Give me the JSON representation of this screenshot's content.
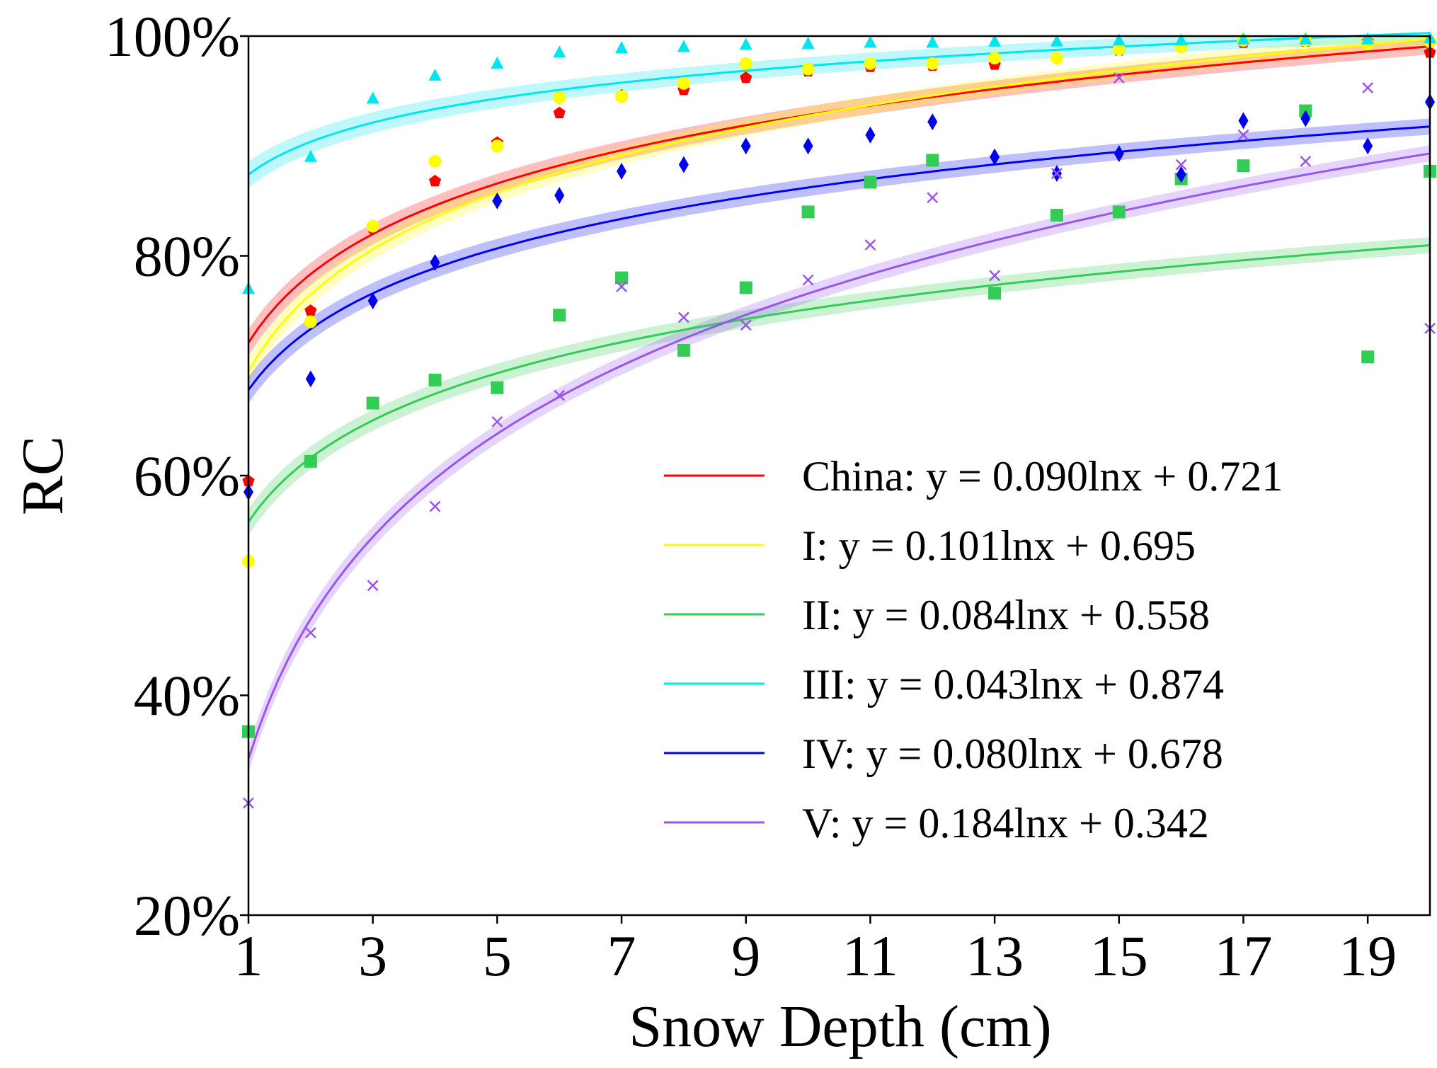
{
  "chart_data": {
    "type": "scatter",
    "xlabel": "Snow Depth (cm)",
    "ylabel": "RC",
    "xlim": [
      1,
      20
    ],
    "ylim": [
      0.2,
      1.0
    ],
    "x_ticks": [
      1,
      3,
      5,
      7,
      9,
      11,
      13,
      15,
      17,
      19
    ],
    "x_tick_labels": [
      "1",
      "3",
      "5",
      "7",
      "9",
      "11",
      "13",
      "15",
      "17",
      "19"
    ],
    "y_ticks": [
      0.2,
      0.4,
      0.6,
      0.8,
      1.0
    ],
    "y_tick_labels": [
      "20%",
      "40%",
      "60%",
      "80%",
      "100%"
    ],
    "grid": false,
    "legend_position": "lower-right",
    "x": [
      1,
      2,
      3,
      4,
      5,
      6,
      7,
      8,
      9,
      10,
      11,
      12,
      13,
      14,
      15,
      16,
      17,
      18,
      19,
      20
    ],
    "series": [
      {
        "name": "China",
        "legend": "China: y = 0.090lnx + 0.721",
        "color": "#ff0000",
        "marker": "pentagon",
        "fit": {
          "a": 0.09,
          "b": 0.721
        },
        "values": [
          0.595,
          0.75,
          0.825,
          0.868,
          0.903,
          0.93,
          0.946,
          0.951,
          0.962,
          0.968,
          0.972,
          0.973,
          0.974,
          0.98,
          0.987,
          0.99,
          0.994,
          0.995,
          0.995,
          0.985
        ]
      },
      {
        "name": "I",
        "legend": "I: y = 0.101lnx + 0.695",
        "color": "#ffff00",
        "marker": "circle",
        "fit": {
          "a": 0.101,
          "b": 0.695
        },
        "values": [
          0.522,
          0.74,
          0.827,
          0.886,
          0.9,
          0.944,
          0.945,
          0.957,
          0.975,
          0.97,
          0.975,
          0.975,
          0.98,
          0.98,
          0.988,
          0.99,
          0.996,
          0.996,
          0.993,
          0.995
        ]
      },
      {
        "name": "II",
        "legend": "II: y = 0.084lnx + 0.558",
        "color": "#33cc55",
        "marker": "square",
        "fit": {
          "a": 0.084,
          "b": 0.558
        },
        "values": [
          0.367,
          0.613,
          0.666,
          0.687,
          0.68,
          0.746,
          0.78,
          0.714,
          0.771,
          0.84,
          0.867,
          0.887,
          0.766,
          0.837,
          0.84,
          0.87,
          0.882,
          0.932,
          0.708,
          0.877
        ]
      },
      {
        "name": "III",
        "legend": "III: y = 0.043lnx + 0.874",
        "color": "#00e5ee",
        "marker": "triangle",
        "fit": {
          "a": 0.043,
          "b": 0.874
        },
        "values": [
          0.77,
          0.89,
          0.943,
          0.964,
          0.975,
          0.985,
          0.989,
          0.99,
          0.992,
          0.993,
          0.994,
          0.994,
          0.995,
          0.995,
          0.996,
          0.996,
          0.997,
          0.997,
          0.997,
          0.998
        ]
      },
      {
        "name": "IV",
        "legend": "IV: y = 0.080lnx + 0.678",
        "color": "#0000ee",
        "marker": "diamond",
        "fit": {
          "a": 0.08,
          "b": 0.678
        },
        "values": [
          0.585,
          0.688,
          0.759,
          0.794,
          0.85,
          0.855,
          0.877,
          0.883,
          0.9,
          0.9,
          0.91,
          0.922,
          0.89,
          0.875,
          0.893,
          0.874,
          0.923,
          0.925,
          0.9,
          0.94
        ]
      },
      {
        "name": "V",
        "legend": "V: y = 0.184lnx + 0.342",
        "color": "#9955ee",
        "marker": "x",
        "fit": {
          "a": 0.184,
          "b": 0.342
        },
        "values": [
          0.302,
          0.457,
          0.5,
          0.572,
          0.649,
          0.673,
          0.772,
          0.744,
          0.737,
          0.778,
          0.81,
          0.853,
          0.782,
          0.875,
          0.962,
          0.883,
          0.91,
          0.886,
          0.953,
          0.734
        ]
      }
    ]
  }
}
